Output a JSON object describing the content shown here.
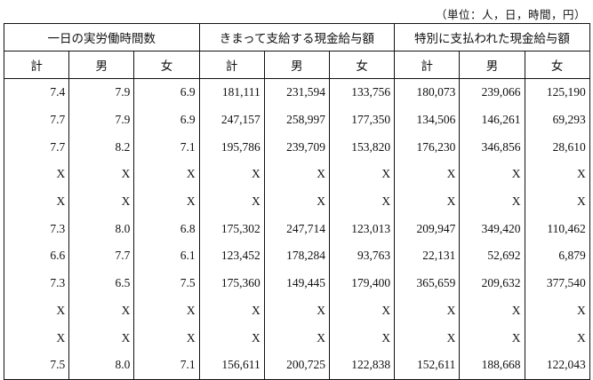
{
  "unit_note": "（単位：人，日，時間，円）",
  "groups": [
    "一日の実労働時間数",
    "きまって支給する現金給与額",
    "特別に支払われた現金給与額"
  ],
  "sub_headers": [
    "計",
    "男",
    "女",
    "計",
    "男",
    "女",
    "計",
    "男",
    "女"
  ],
  "rows": [
    [
      "7.4",
      "7.9",
      "6.9",
      "181,111",
      "231,594",
      "133,756",
      "180,073",
      "239,066",
      "125,190"
    ],
    [
      "7.7",
      "7.9",
      "6.9",
      "247,157",
      "258,997",
      "177,350",
      "134,506",
      "146,261",
      "69,293"
    ],
    [
      "7.7",
      "8.2",
      "7.1",
      "195,786",
      "239,709",
      "153,820",
      "176,230",
      "346,856",
      "28,610"
    ],
    [
      "X",
      "X",
      "X",
      "X",
      "X",
      "X",
      "X",
      "X",
      "X"
    ],
    [
      "X",
      "X",
      "X",
      "X",
      "X",
      "X",
      "X",
      "X",
      "X"
    ],
    [
      "7.3",
      "8.0",
      "6.8",
      "175,302",
      "247,714",
      "123,013",
      "209,947",
      "349,420",
      "110,462"
    ],
    [
      "6.6",
      "7.7",
      "6.1",
      "123,452",
      "178,284",
      "93,763",
      "22,131",
      "52,692",
      "6,879"
    ],
    [
      "7.3",
      "6.5",
      "7.5",
      "175,360",
      "149,445",
      "179,400",
      "365,659",
      "209,632",
      "377,540"
    ],
    [
      "X",
      "X",
      "X",
      "X",
      "X",
      "X",
      "X",
      "X",
      "X"
    ],
    [
      "X",
      "X",
      "X",
      "X",
      "X",
      "X",
      "X",
      "X",
      "X"
    ],
    [
      "7.5",
      "8.0",
      "7.1",
      "156,611",
      "200,725",
      "122,838",
      "152,611",
      "188,668",
      "122,043"
    ]
  ]
}
